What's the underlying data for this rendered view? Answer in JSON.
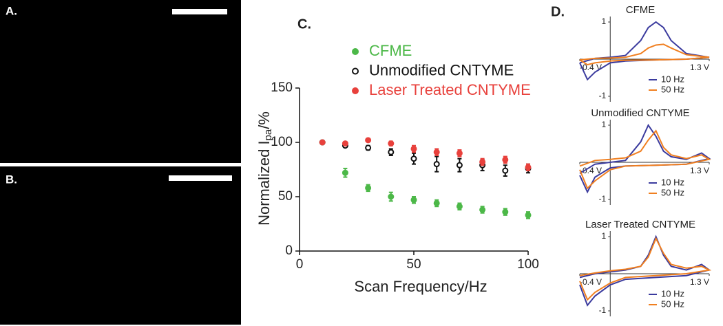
{
  "images": [
    {
      "label": "A."
    },
    {
      "label": "B."
    }
  ],
  "chart_data": [
    {
      "type": "scatter",
      "label": "C.",
      "x_label": "Scan Frequency/Hz",
      "y_label": "Normalized I",
      "y_label_sub": "pa",
      "y_label_suffix": "/%",
      "x": [
        10,
        20,
        30,
        40,
        50,
        60,
        70,
        80,
        90,
        100
      ],
      "series": [
        {
          "name": "CFME",
          "color": "#4cb848",
          "filled": true,
          "values": [
            100,
            72,
            58,
            50,
            47,
            44,
            41,
            38,
            36,
            33
          ],
          "errors": [
            0,
            4,
            3,
            4,
            3,
            3,
            3,
            3,
            3,
            3
          ]
        },
        {
          "name": "Unmodified CNTYME",
          "color": "#111111",
          "filled": false,
          "values": [
            100,
            97,
            95,
            91,
            85,
            80,
            79,
            79,
            74,
            76
          ],
          "errors": [
            0,
            1,
            2,
            3,
            5,
            7,
            6,
            5,
            5,
            4
          ]
        },
        {
          "name": "Laser Treated CNTYME",
          "color": "#e8413c",
          "filled": true,
          "values": [
            100,
            99,
            102,
            99,
            94,
            91,
            90,
            82,
            84,
            77
          ],
          "errors": [
            0,
            1,
            1,
            2,
            3,
            3,
            3,
            3,
            3,
            3
          ]
        }
      ],
      "xlim": [
        0,
        100
      ],
      "xticks": [
        0,
        50,
        100
      ],
      "ylim": [
        0,
        150
      ],
      "yticks": [
        0,
        50,
        100,
        150
      ]
    },
    {
      "type": "line",
      "label": "D.",
      "title": "CFME",
      "x": [
        -0.4,
        -0.2,
        0,
        0.2,
        0.4,
        0.5,
        0.6,
        0.7,
        0.8,
        1.0,
        1.3,
        1.0,
        0.6,
        0.2,
        0,
        -0.2,
        -0.3,
        -0.4
      ],
      "series": [
        {
          "name": "10 Hz",
          "color": "#3b3b9e",
          "values": [
            -0.1,
            0.02,
            0.05,
            0.1,
            0.5,
            0.85,
            1.0,
            0.85,
            0.5,
            0.15,
            0.05,
            0,
            -0.02,
            -0.05,
            -0.1,
            -0.35,
            -0.55,
            -0.1
          ]
        },
        {
          "name": "50 Hz",
          "color": "#f07f20",
          "values": [
            -0.02,
            0.02,
            0.03,
            0.05,
            0.15,
            0.3,
            0.38,
            0.4,
            0.3,
            0.12,
            0.05,
            0,
            -0.02,
            -0.03,
            -0.05,
            -0.1,
            -0.15,
            -0.02
          ]
        }
      ],
      "xlim": [
        -0.4,
        1.3
      ],
      "xticks": [
        {
          "value": -0.4,
          "label": "-0.4 V"
        },
        {
          "value": 1.3,
          "label": "1.3 V"
        }
      ],
      "ylim": [
        -1,
        1
      ],
      "yticks": [
        -1,
        1
      ]
    },
    {
      "type": "line",
      "title": "Unmodified CNTYME",
      "x": [
        -0.4,
        -0.2,
        0,
        0.2,
        0.4,
        0.5,
        0.6,
        0.7,
        0.8,
        1.0,
        1.2,
        1.3,
        1.0,
        0.6,
        0.2,
        0,
        -0.2,
        -0.3,
        -0.4
      ],
      "series": [
        {
          "name": "10 Hz",
          "color": "#3b3b9e",
          "values": [
            -0.3,
            -0.05,
            0,
            0.05,
            0.55,
            1.0,
            0.7,
            0.3,
            0.15,
            0.08,
            0.25,
            0.1,
            -0.05,
            -0.08,
            -0.1,
            -0.15,
            -0.4,
            -0.8,
            -0.35
          ]
        },
        {
          "name": "50 Hz",
          "color": "#f07f20",
          "values": [
            -0.1,
            0.05,
            0.08,
            0.12,
            0.3,
            0.6,
            0.85,
            0.4,
            0.2,
            0.1,
            0.2,
            0.08,
            -0.05,
            -0.08,
            -0.1,
            -0.2,
            -0.5,
            -0.7,
            -0.2
          ]
        }
      ],
      "xlim": [
        -0.4,
        1.3
      ],
      "xticks": [
        {
          "value": -0.4,
          "label": "-0.4 V"
        },
        {
          "value": 1.3,
          "label": "1.3 V"
        }
      ],
      "ylim": [
        -1,
        1
      ],
      "yticks": [
        -1,
        1
      ]
    },
    {
      "type": "line",
      "title": "Laser Treated CNTYME",
      "x": [
        -0.4,
        -0.2,
        0,
        0.2,
        0.4,
        0.5,
        0.6,
        0.7,
        0.8,
        1.0,
        1.2,
        1.3,
        1.0,
        0.6,
        0.2,
        0,
        -0.2,
        -0.3,
        -0.4
      ],
      "series": [
        {
          "name": "10 Hz",
          "color": "#3b3b9e",
          "values": [
            -0.1,
            0,
            0.05,
            0.1,
            0.2,
            0.5,
            1.0,
            0.5,
            0.2,
            0.1,
            0.25,
            0.1,
            -0.05,
            -0.1,
            -0.15,
            -0.3,
            -0.6,
            -0.85,
            -0.3
          ]
        },
        {
          "name": "50 Hz",
          "color": "#f07f20",
          "values": [
            -0.05,
            0.02,
            0.08,
            0.12,
            0.2,
            0.45,
            0.95,
            0.55,
            0.25,
            0.15,
            0.2,
            0.1,
            0,
            -0.05,
            -0.1,
            -0.25,
            -0.5,
            -0.7,
            -0.2
          ]
        }
      ],
      "xlim": [
        -0.4,
        1.3
      ],
      "xticks": [
        {
          "value": -0.4,
          "label": "-0.4 V"
        },
        {
          "value": 1.3,
          "label": "1.3 V"
        }
      ],
      "ylim": [
        -1,
        1
      ],
      "yticks": [
        -1,
        1
      ]
    }
  ]
}
